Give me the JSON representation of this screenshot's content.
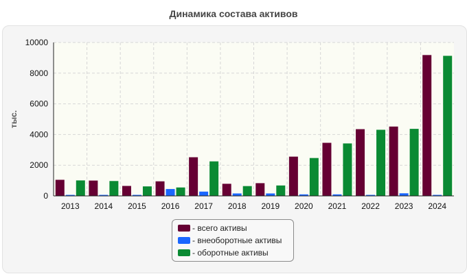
{
  "chart_data": {
    "type": "bar",
    "title": "Динамика состава активов",
    "ylabel": "тыс.",
    "xlabel": "",
    "ylim": [
      0,
      10000
    ],
    "yticks": [
      0,
      2000,
      4000,
      6000,
      8000,
      10000
    ],
    "categories": [
      "2013",
      "2014",
      "2015",
      "2016",
      "2017",
      "2018",
      "2019",
      "2020",
      "2021",
      "2022",
      "2023",
      "2024"
    ],
    "series": [
      {
        "name": "- всего активы",
        "color": "#660033",
        "values": [
          1050,
          1000,
          650,
          950,
          2520,
          790,
          830,
          2560,
          3460,
          4350,
          4520,
          9180
        ]
      },
      {
        "name": "- внеоборотные активы",
        "color": "#1a66ff",
        "values": [
          40,
          30,
          40,
          450,
          280,
          160,
          160,
          100,
          100,
          40,
          170,
          50
        ]
      },
      {
        "name": "- оборотные активы",
        "color": "#0a8a33",
        "values": [
          1010,
          970,
          620,
          550,
          2250,
          640,
          680,
          2470,
          3420,
          4310,
          4370,
          9130
        ]
      }
    ],
    "grid": true,
    "legend_position": "bottom"
  }
}
